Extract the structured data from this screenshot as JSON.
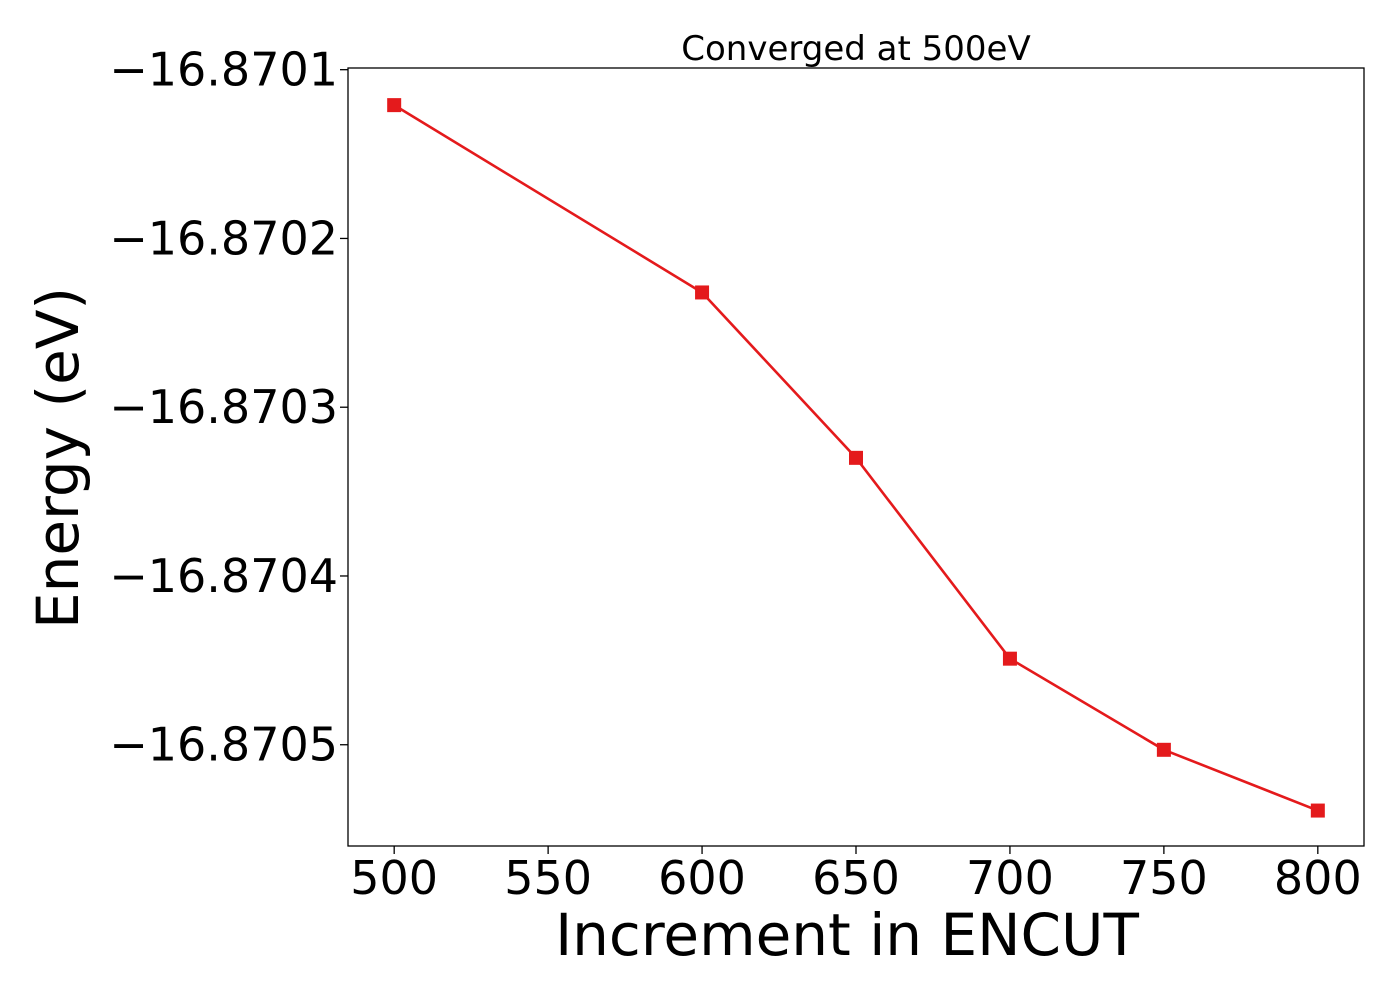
{
  "chart_data": {
    "type": "line",
    "title": "Converged at 500eV",
    "xlabel": "Increment in ENCUT",
    "ylabel": "Energy (eV)",
    "x": [
      500,
      600,
      650,
      700,
      750,
      800
    ],
    "series": [
      {
        "values": [
          -16.870121,
          -16.870232,
          -16.87033,
          -16.870449,
          -16.870503,
          -16.870539
        ],
        "color": "#e41a1c",
        "marker": "square"
      }
    ],
    "xticks": [
      500,
      550,
      600,
      650,
      700,
      750,
      800
    ],
    "xtick_labels": [
      "500",
      "550",
      "600",
      "650",
      "700",
      "750",
      "800"
    ],
    "yticks": [
      -16.8701,
      -16.8702,
      -16.8703,
      -16.8704,
      -16.8705
    ],
    "ytick_labels": [
      "−16.8701",
      "−16.8702",
      "−16.8703",
      "−16.8704",
      "−16.8705"
    ],
    "xlim": [
      485,
      815
    ],
    "ylim": [
      -16.87056,
      -16.870099
    ],
    "grid": false,
    "legend": "none"
  }
}
